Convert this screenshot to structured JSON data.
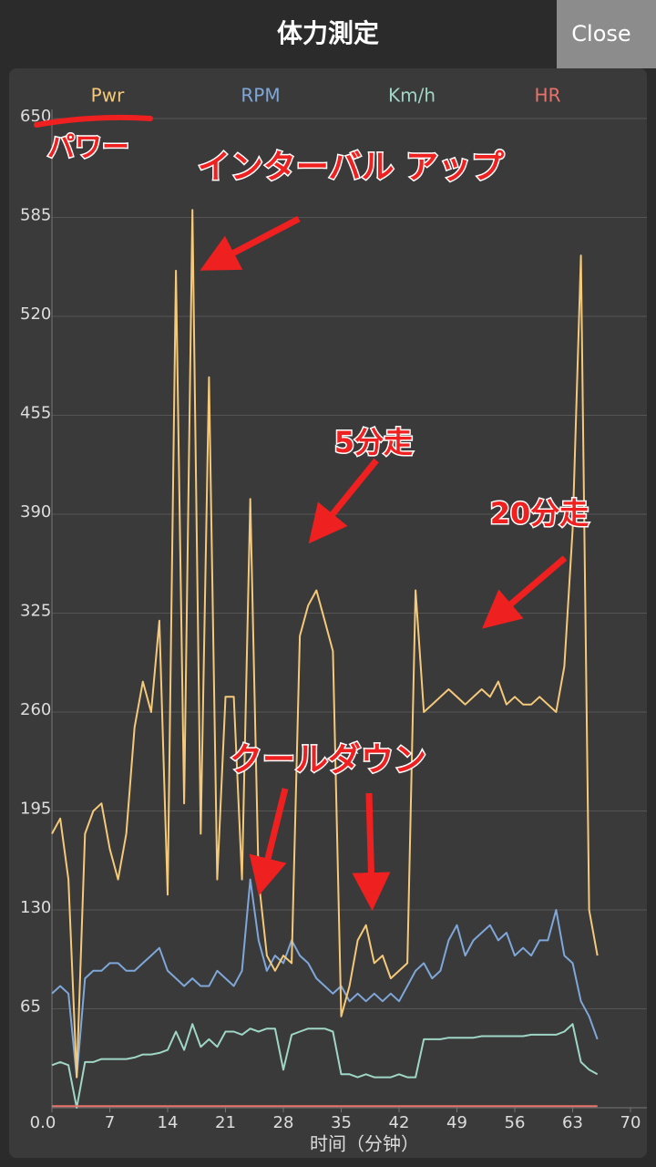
{
  "header": {
    "title": "体力測定",
    "close": "Close"
  },
  "chart_data": {
    "type": "line",
    "xlabel": "时间（分钟）",
    "annotations": [
      "パワー",
      "インターバル アップ",
      "5分走",
      "20分走",
      "クールダウン"
    ],
    "x": [
      0,
      1,
      2,
      3,
      4,
      5,
      6,
      7,
      8,
      9,
      10,
      11,
      12,
      13,
      14,
      15,
      16,
      17,
      18,
      19,
      20,
      21,
      22,
      23,
      24,
      25,
      26,
      27,
      28,
      29,
      30,
      31,
      32,
      33,
      34,
      35,
      36,
      37,
      38,
      39,
      40,
      41,
      42,
      43,
      44,
      45,
      46,
      47,
      48,
      49,
      50,
      51,
      52,
      53,
      54,
      55,
      56,
      57,
      58,
      59,
      60,
      61,
      62,
      63,
      64,
      65,
      66
    ],
    "series": [
      {
        "name": "Pwr",
        "color": "#f5c97a",
        "values": [
          180,
          190,
          150,
          20,
          180,
          195,
          200,
          170,
          150,
          180,
          250,
          280,
          260,
          320,
          140,
          550,
          200,
          590,
          180,
          480,
          150,
          270,
          270,
          150,
          400,
          150,
          100,
          90,
          100,
          95,
          310,
          330,
          340,
          320,
          300,
          60,
          80,
          110,
          120,
          95,
          100,
          85,
          90,
          95,
          340,
          260,
          265,
          270,
          275,
          270,
          265,
          270,
          275,
          270,
          280,
          265,
          270,
          265,
          265,
          270,
          265,
          260,
          290,
          380,
          560,
          130,
          100
        ]
      },
      {
        "name": "RPM",
        "color": "#7fa7d9",
        "values": [
          75,
          80,
          75,
          20,
          85,
          90,
          90,
          95,
          95,
          90,
          90,
          95,
          100,
          105,
          90,
          85,
          80,
          85,
          80,
          80,
          90,
          85,
          80,
          90,
          150,
          110,
          90,
          100,
          95,
          110,
          100,
          95,
          85,
          80,
          75,
          80,
          70,
          75,
          70,
          75,
          70,
          75,
          70,
          80,
          90,
          95,
          85,
          90,
          110,
          120,
          100,
          110,
          115,
          120,
          110,
          115,
          100,
          105,
          100,
          110,
          110,
          130,
          100,
          95,
          70,
          60,
          45
        ]
      },
      {
        "name": "Km/h",
        "color": "#9fd6c6",
        "values": [
          28,
          30,
          28,
          0,
          30,
          30,
          32,
          32,
          32,
          32,
          33,
          35,
          35,
          36,
          38,
          50,
          38,
          55,
          40,
          45,
          40,
          50,
          50,
          48,
          52,
          50,
          52,
          52,
          25,
          48,
          50,
          52,
          52,
          52,
          50,
          22,
          22,
          20,
          22,
          20,
          20,
          20,
          22,
          20,
          20,
          45,
          45,
          45,
          46,
          46,
          46,
          46,
          47,
          47,
          47,
          47,
          47,
          47,
          48,
          48,
          48,
          48,
          50,
          55,
          30,
          25,
          22
        ]
      },
      {
        "name": "HR",
        "color": "#e8736a",
        "values": [
          1,
          1,
          1,
          1,
          1,
          1,
          1,
          1,
          1,
          1,
          1,
          1,
          1,
          1,
          1,
          1,
          1,
          1,
          1,
          1,
          1,
          1,
          1,
          1,
          1,
          1,
          1,
          1,
          1,
          1,
          1,
          1,
          1,
          1,
          1,
          1,
          1,
          1,
          1,
          1,
          1,
          1,
          1,
          1,
          1,
          1,
          1,
          1,
          1,
          1,
          1,
          1,
          1,
          1,
          1,
          1,
          1,
          1,
          1,
          1,
          1,
          1,
          1,
          1,
          1,
          1,
          1
        ]
      }
    ],
    "xlim": [
      0,
      70
    ],
    "xticks": [
      {
        "value": 0,
        "label": "0.0"
      },
      7,
      14,
      21,
      28,
      35,
      42,
      49,
      56,
      63,
      70
    ],
    "ylim": [
      0,
      650
    ],
    "yticks": [
      65,
      130,
      195,
      260,
      325,
      390,
      455,
      520,
      585,
      650
    ],
    "grid": true
  }
}
